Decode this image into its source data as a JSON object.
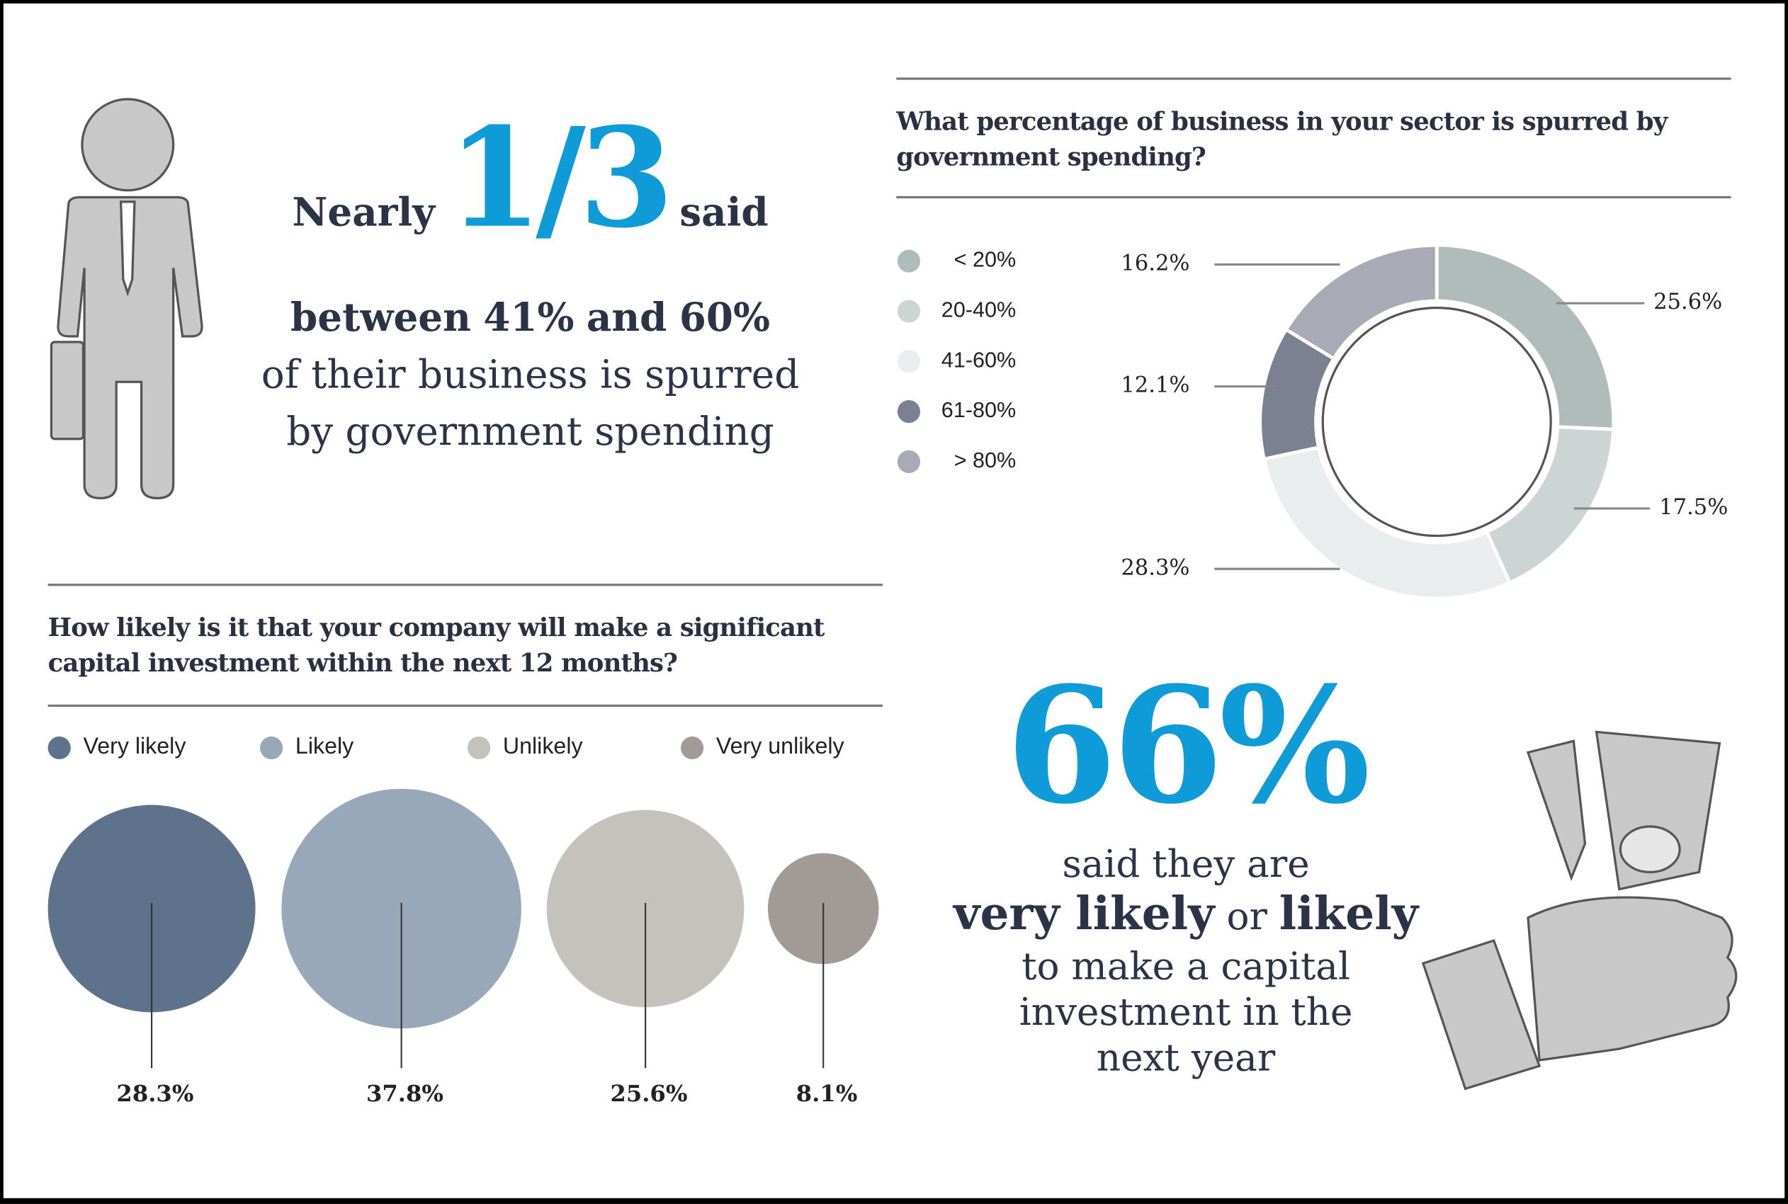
{
  "headline": {
    "pre": "Nearly",
    "fraction": "1/3",
    "post": "said",
    "line2_pre": "between",
    "line2_a": "41%",
    "line2_mid": "and",
    "line2_b": "60%",
    "line3": "of their business is spurred",
    "line4": "by government spending"
  },
  "stat": {
    "number": "66%",
    "line1": "said they are",
    "strong1": "very likely",
    "or": "or",
    "strong2": "likely",
    "line3": "to make a capital",
    "line4": "investment in the",
    "line5": "next year"
  },
  "chart_data": [
    {
      "type": "pie",
      "variant": "donut",
      "title": "What percentage of business in your sector is spurred by government spending?",
      "categories": [
        "< 20%",
        "20-40%",
        "41-60%",
        "61-80%",
        "> 80%"
      ],
      "values": [
        25.6,
        17.5,
        28.3,
        12.1,
        16.2
      ],
      "labels": [
        "25.6%",
        "17.5%",
        "28.3%",
        "12.1%",
        "16.2%"
      ],
      "colors": [
        "#afbcba",
        "#cdd5d4",
        "#e9eded",
        "#7b8190",
        "#a9aab6"
      ],
      "legend": "left"
    },
    {
      "type": "bubble",
      "title": "How likely is it that your company will make a significant capital investment within the next 12 months?",
      "categories": [
        "Very likely",
        "Likely",
        "Unlikely",
        "Very unlikely"
      ],
      "values": [
        28.3,
        37.8,
        25.6,
        8.1
      ],
      "labels": [
        "28.3%",
        "37.8%",
        "25.6%",
        "8.1%"
      ],
      "colors": [
        "#5f728b",
        "#99a8b8",
        "#c5c2bd",
        "#a29a97"
      ],
      "legend": "top"
    }
  ]
}
